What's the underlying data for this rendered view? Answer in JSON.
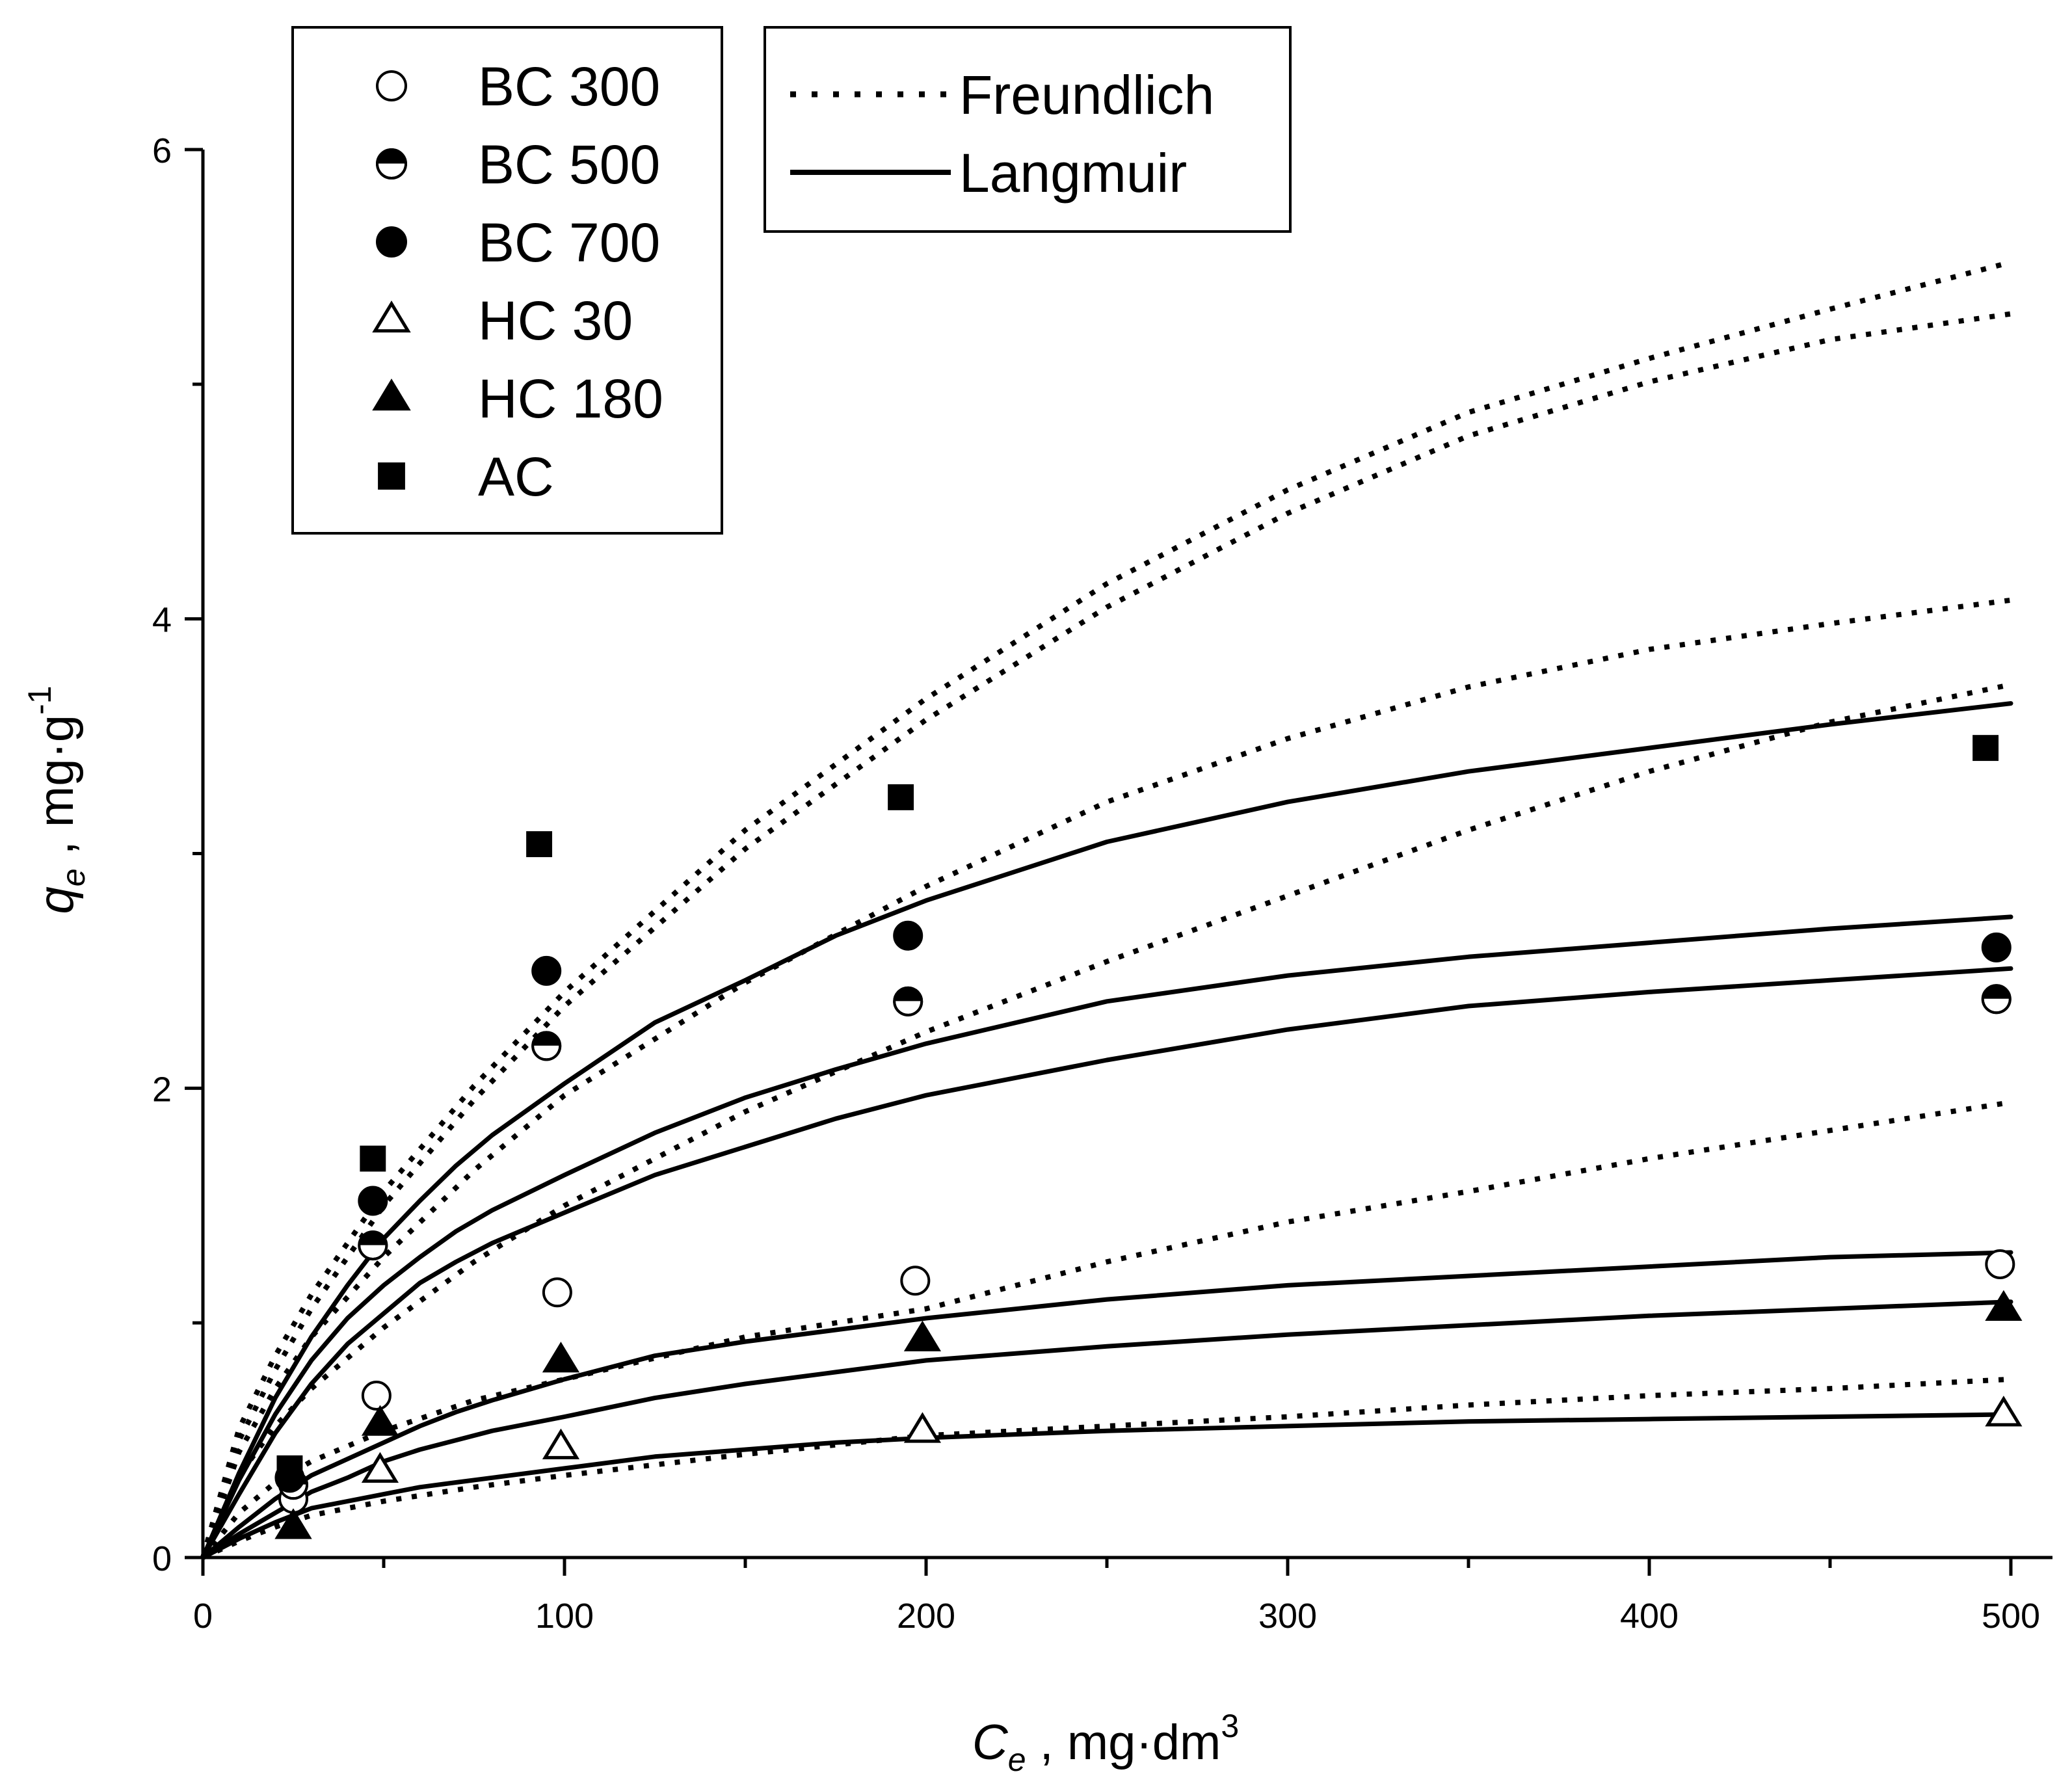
{
  "chart_data": {
    "type": "scatter",
    "xlabel": {
      "main": "C",
      "sub": "e",
      "rest": " , mg·dm",
      "sup": "3"
    },
    "ylabel": {
      "main": "q",
      "sub": "e",
      "rest": " , mg·g",
      "sup": "-1"
    },
    "xlim": [
      0,
      510
    ],
    "ylim": [
      0,
      6
    ],
    "x_ticks": [
      0,
      100,
      200,
      300,
      400,
      500
    ],
    "y_ticks": [
      0,
      2,
      4,
      6
    ],
    "x_minor_step": 50,
    "y_minor_step": 1,
    "grid": false,
    "series": [
      {
        "name": "BC 300",
        "marker": "circle-open",
        "x": [
          25,
          48,
          98,
          197,
          497
        ],
        "y": [
          0.25,
          0.69,
          1.13,
          1.18,
          1.25
        ]
      },
      {
        "name": "BC 500",
        "marker": "circle-half",
        "x": [
          25,
          47,
          95,
          195,
          496
        ],
        "y": [
          0.31,
          1.33,
          2.18,
          2.37,
          2.38
        ]
      },
      {
        "name": "BC 700",
        "marker": "circle-filled",
        "x": [
          24,
          47,
          95,
          195,
          496
        ],
        "y": [
          0.34,
          1.52,
          2.5,
          2.65,
          2.6
        ]
      },
      {
        "name": "HC 30",
        "marker": "triangle-open",
        "x": [
          25,
          49,
          99,
          199,
          498
        ],
        "y": [
          0.13,
          0.37,
          0.47,
          0.54,
          0.61
        ]
      },
      {
        "name": "HC 180",
        "marker": "triangle-filled",
        "x": [
          25,
          49,
          99,
          199,
          498
        ],
        "y": [
          0.13,
          0.57,
          0.84,
          0.93,
          1.06
        ]
      },
      {
        "name": "AC",
        "marker": "square-filled",
        "x": [
          24,
          47,
          93,
          193,
          493
        ],
        "y": [
          0.38,
          1.7,
          3.04,
          3.24,
          3.45
        ]
      }
    ],
    "fits": [
      {
        "model": "Freundlich",
        "style": "dotted",
        "x": [
          0,
          10,
          20,
          30,
          50,
          75,
          100,
          150,
          200,
          250,
          300,
          350,
          400,
          450,
          500
        ],
        "y": [
          0,
          0.55,
          0.86,
          1.12,
          1.56,
          2.01,
          2.41,
          3.1,
          3.66,
          4.15,
          4.55,
          4.88,
          5.11,
          5.32,
          5.52
        ]
      },
      {
        "model": "Freundlich",
        "style": "dotted",
        "x": [
          0,
          10,
          20,
          30,
          50,
          75,
          100,
          150,
          200,
          250,
          300,
          350,
          400,
          450,
          500
        ],
        "y": [
          0,
          0.5,
          0.8,
          1.06,
          1.5,
          1.95,
          2.35,
          3.02,
          3.57,
          4.05,
          4.45,
          4.78,
          5.01,
          5.19,
          5.3
        ]
      },
      {
        "model": "Freundlich",
        "style": "dotted",
        "x": [
          0,
          10,
          20,
          30,
          50,
          75,
          100,
          150,
          200,
          250,
          300,
          350,
          400,
          450,
          500
        ],
        "y": [
          0,
          0.45,
          0.72,
          0.94,
          1.28,
          1.65,
          1.97,
          2.45,
          2.86,
          3.22,
          3.49,
          3.71,
          3.87,
          3.98,
          4.08
        ]
      },
      {
        "model": "Freundlich",
        "style": "dotted",
        "x": [
          0,
          10,
          20,
          30,
          50,
          75,
          100,
          150,
          200,
          250,
          300,
          350,
          400,
          450,
          500
        ],
        "y": [
          0,
          0.35,
          0.56,
          0.72,
          0.98,
          1.26,
          1.5,
          1.9,
          2.24,
          2.54,
          2.82,
          3.1,
          3.35,
          3.56,
          3.72
        ]
      },
      {
        "model": "Freundlich",
        "style": "dotted",
        "x": [
          0,
          10,
          20,
          30,
          50,
          75,
          100,
          150,
          200,
          250,
          300,
          350,
          400,
          450,
          500
        ],
        "y": [
          0,
          0.19,
          0.32,
          0.41,
          0.54,
          0.67,
          0.76,
          0.94,
          1.06,
          1.26,
          1.43,
          1.56,
          1.7,
          1.82,
          1.94
        ]
      },
      {
        "model": "Freundlich",
        "style": "dotted",
        "x": [
          0,
          10,
          20,
          30,
          50,
          75,
          100,
          150,
          200,
          250,
          300,
          350,
          400,
          450,
          500
        ],
        "y": [
          0,
          0.07,
          0.13,
          0.18,
          0.24,
          0.3,
          0.35,
          0.44,
          0.52,
          0.56,
          0.6,
          0.65,
          0.69,
          0.72,
          0.76
        ]
      },
      {
        "model": "Langmuir",
        "style": "solid",
        "x": [
          0,
          10,
          20,
          30,
          40,
          50,
          60,
          70,
          80,
          100,
          125,
          150,
          175,
          200,
          250,
          300,
          350,
          400,
          450,
          500
        ],
        "y": [
          0,
          0.36,
          0.68,
          0.94,
          1.16,
          1.36,
          1.52,
          1.67,
          1.8,
          2.02,
          2.28,
          2.46,
          2.65,
          2.8,
          3.05,
          3.22,
          3.35,
          3.45,
          3.55,
          3.64
        ]
      },
      {
        "model": "Langmuir",
        "style": "solid",
        "x": [
          0,
          10,
          20,
          30,
          40,
          50,
          60,
          70,
          80,
          100,
          125,
          150,
          175,
          200,
          250,
          300,
          350,
          400,
          450,
          500
        ],
        "y": [
          0,
          0.33,
          0.61,
          0.84,
          1.02,
          1.16,
          1.28,
          1.39,
          1.48,
          1.63,
          1.81,
          1.96,
          2.08,
          2.19,
          2.37,
          2.48,
          2.56,
          2.62,
          2.68,
          2.73
        ]
      },
      {
        "model": "Langmuir",
        "style": "solid",
        "x": [
          0,
          10,
          20,
          30,
          40,
          50,
          60,
          70,
          80,
          100,
          125,
          150,
          175,
          200,
          250,
          300,
          350,
          400,
          450,
          500
        ],
        "y": [
          0,
          0.27,
          0.53,
          0.74,
          0.91,
          1.04,
          1.17,
          1.26,
          1.34,
          1.47,
          1.63,
          1.75,
          1.87,
          1.97,
          2.12,
          2.25,
          2.35,
          2.41,
          2.46,
          2.51
        ]
      },
      {
        "model": "Langmuir",
        "style": "solid",
        "x": [
          0,
          10,
          20,
          30,
          40,
          50,
          60,
          70,
          80,
          100,
          125,
          150,
          175,
          200,
          250,
          300,
          350,
          400,
          450,
          500
        ],
        "y": [
          0,
          0.13,
          0.25,
          0.35,
          0.42,
          0.49,
          0.56,
          0.62,
          0.67,
          0.76,
          0.86,
          0.92,
          0.97,
          1.02,
          1.1,
          1.16,
          1.2,
          1.24,
          1.28,
          1.3
        ]
      },
      {
        "model": "Langmuir",
        "style": "solid",
        "x": [
          0,
          10,
          20,
          30,
          40,
          50,
          60,
          70,
          80,
          100,
          125,
          150,
          175,
          200,
          250,
          300,
          350,
          400,
          450,
          500
        ],
        "y": [
          0,
          0.1,
          0.19,
          0.28,
          0.34,
          0.41,
          0.46,
          0.5,
          0.54,
          0.6,
          0.68,
          0.74,
          0.79,
          0.84,
          0.9,
          0.95,
          0.99,
          1.03,
          1.06,
          1.09
        ]
      },
      {
        "model": "Langmuir",
        "style": "solid",
        "x": [
          0,
          10,
          20,
          30,
          40,
          50,
          60,
          70,
          80,
          100,
          125,
          150,
          175,
          200,
          250,
          300,
          350,
          400,
          450,
          500
        ],
        "y": [
          0,
          0.08,
          0.15,
          0.21,
          0.24,
          0.27,
          0.3,
          0.32,
          0.34,
          0.38,
          0.43,
          0.46,
          0.49,
          0.51,
          0.54,
          0.56,
          0.58,
          0.59,
          0.6,
          0.61
        ]
      }
    ],
    "legend_series": [
      "BC 300",
      "BC 500",
      "BC 700",
      "HC 30",
      "HC 180",
      "AC"
    ],
    "legend_models": [
      "Freundlich",
      "Langmuir"
    ]
  }
}
